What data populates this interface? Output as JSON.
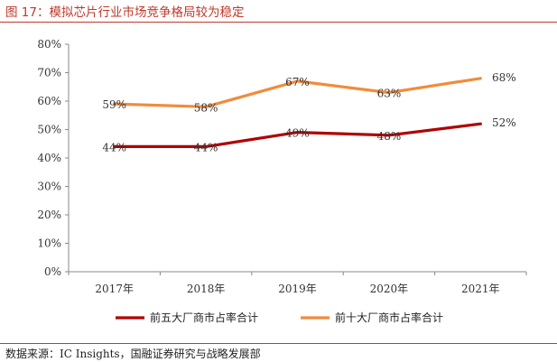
{
  "figure_title": "图 17：模拟芯片行业市场竞争格局较为稳定",
  "source": "数据来源：IC Insights，国融证券研究与战略发展部",
  "colors": {
    "series1": "#b00000",
    "series2": "#f08c3c",
    "accent": "#c0392b"
  },
  "chart_data": {
    "type": "line",
    "categories": [
      "2017年",
      "2018年",
      "2019年",
      "2020年",
      "2021年"
    ],
    "series": [
      {
        "name": "前五大厂商市占率合计",
        "values": [
          44,
          44,
          49,
          48,
          52
        ],
        "labels": [
          "44%",
          "44%",
          "49%",
          "48%",
          "52%"
        ]
      },
      {
        "name": "前十大厂商市占率合计",
        "values": [
          59,
          58,
          67,
          63,
          68
        ],
        "labels": [
          "59%",
          "58%",
          "67%",
          "63%",
          "68%"
        ]
      }
    ],
    "ylim": [
      0,
      80
    ],
    "yticks": [
      0,
      10,
      20,
      30,
      40,
      50,
      60,
      70,
      80
    ],
    "ytick_labels": [
      "0%",
      "10%",
      "20%",
      "30%",
      "40%",
      "50%",
      "60%",
      "70%",
      "80%"
    ],
    "grid": false,
    "legend_position": "bottom"
  }
}
